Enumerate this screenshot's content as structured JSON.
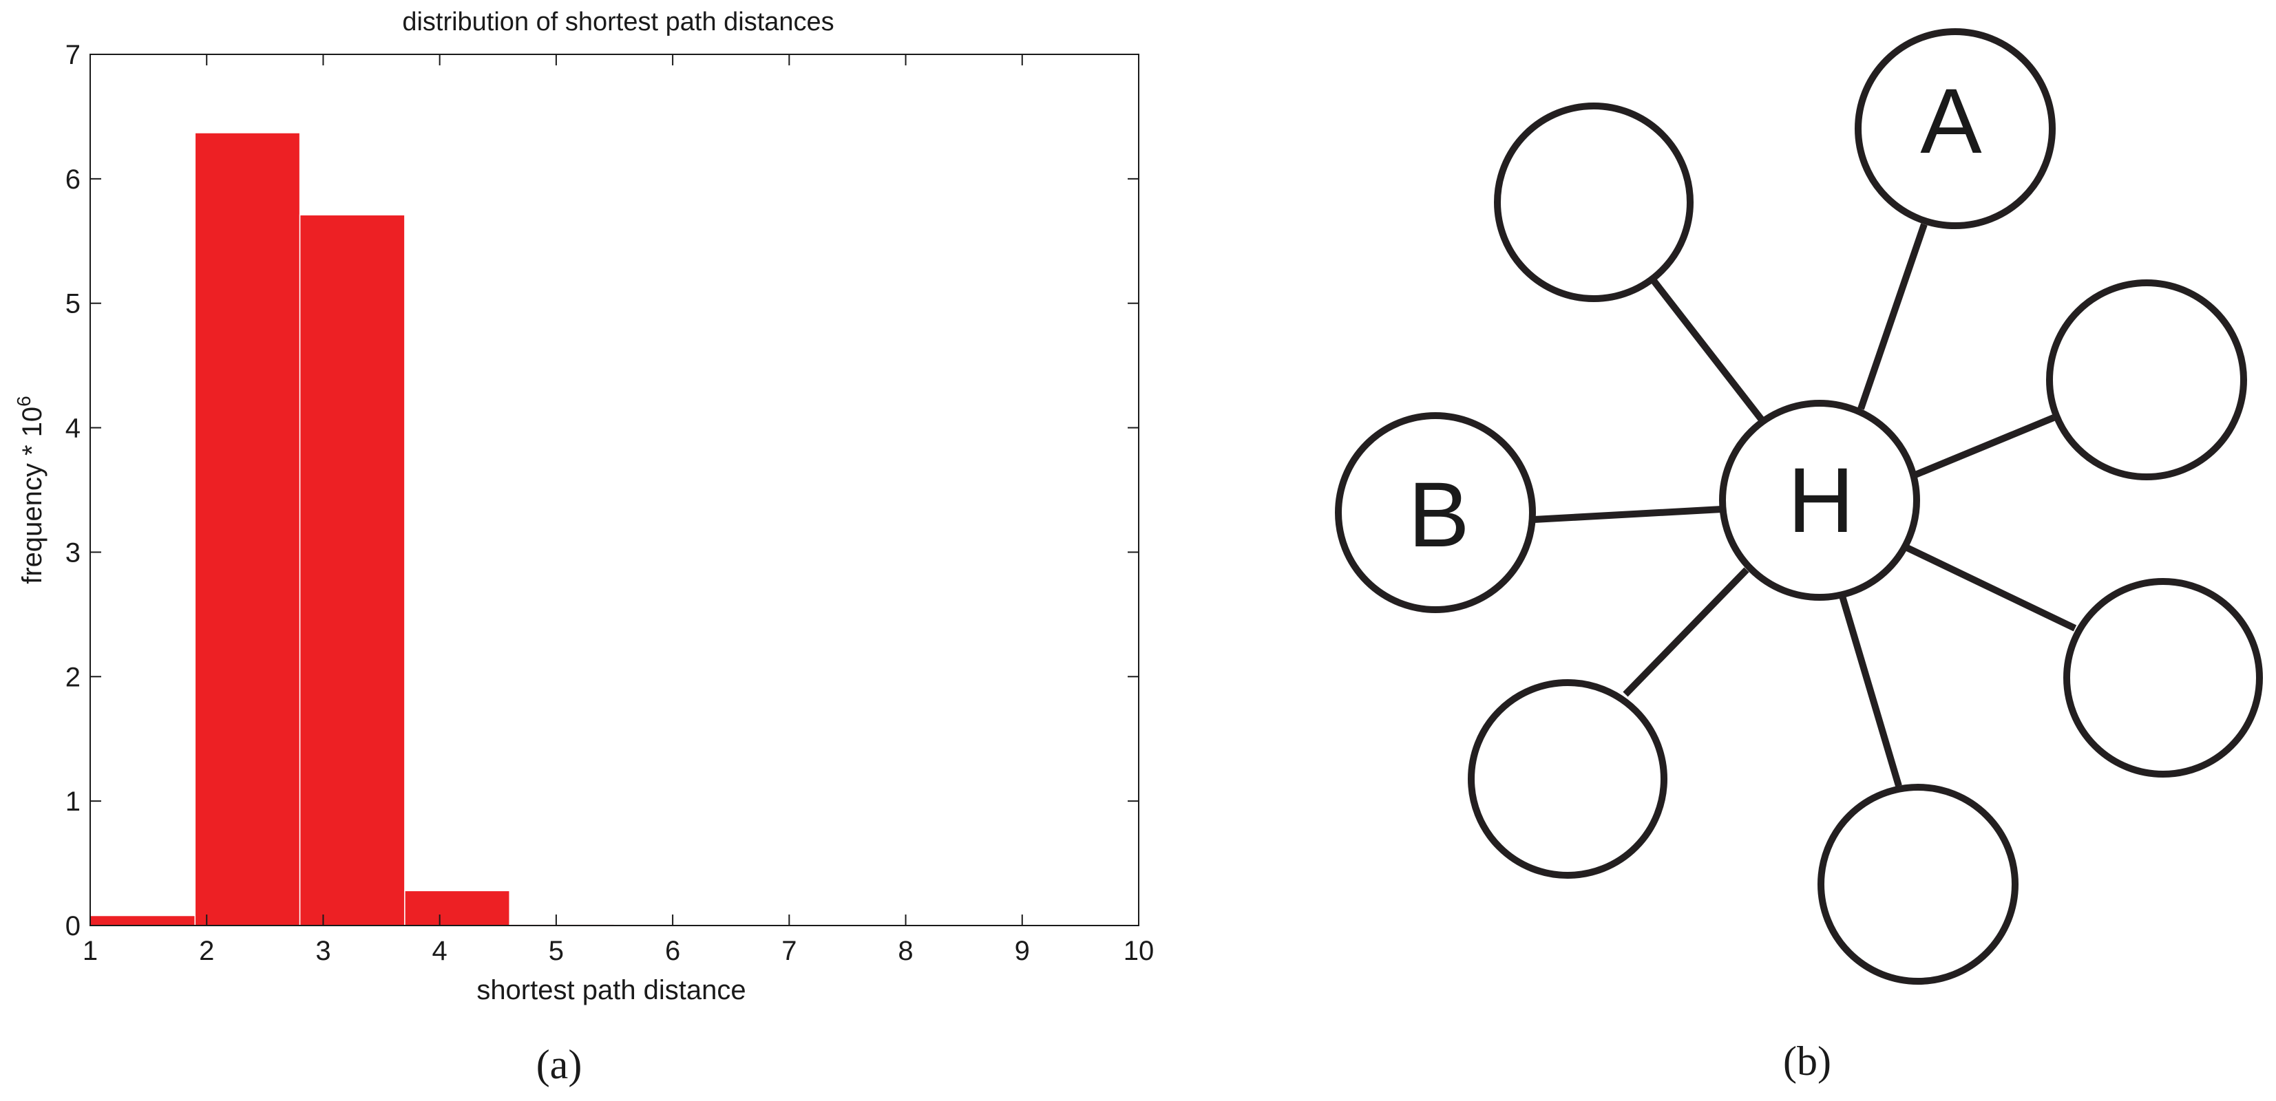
{
  "chart_data": {
    "type": "bar",
    "title": "distribution of shortest path distances",
    "xlabel": "shortest path distance",
    "ylabel_base": "frequency * 10",
    "ylabel_exponent": "6",
    "xlim": [
      1,
      10
    ],
    "ylim": [
      0,
      7
    ],
    "xticks": [
      "1",
      "2",
      "3",
      "4",
      "5",
      "6",
      "7",
      "8",
      "9",
      "10"
    ],
    "yticks": [
      "0",
      "1",
      "2",
      "3",
      "4",
      "5",
      "6",
      "7"
    ],
    "bar_edges": [
      1,
      1.9,
      2.8,
      3.7,
      4.6,
      5.5,
      6.4,
      7.3,
      8.2,
      9.1,
      10
    ],
    "values": [
      0.08,
      6.37,
      5.71,
      0.28,
      0.01,
      0.005,
      0.003,
      0.002,
      0.001,
      0.001
    ],
    "bar_color": "#ed2024",
    "grid": false,
    "caption": "(a)"
  },
  "diagram": {
    "caption": "(b)",
    "hub_label": "H",
    "nodes": [
      {
        "id": "top-left",
        "label": ""
      },
      {
        "id": "a",
        "label": "A"
      },
      {
        "id": "right-upper",
        "label": ""
      },
      {
        "id": "right-lower",
        "label": ""
      },
      {
        "id": "bottom",
        "label": ""
      },
      {
        "id": "bottom-left",
        "label": ""
      },
      {
        "id": "b",
        "label": "B"
      }
    ]
  }
}
